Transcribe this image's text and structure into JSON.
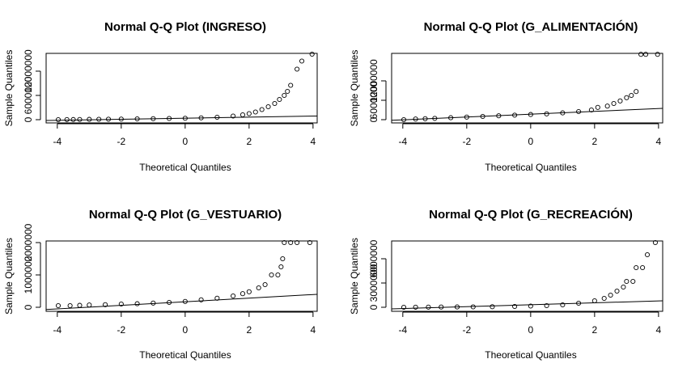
{
  "chart_data": [
    {
      "type": "scatter",
      "title": "Normal Q-Q Plot (INGRESO)",
      "x_label": "Theoretical Quantiles",
      "y_label": "Sample Quantiles",
      "xlim": [
        -4.35,
        4.13
      ],
      "ylim": [
        -800000,
        16400000
      ],
      "xticks": [
        -4,
        -2,
        0,
        2,
        4
      ],
      "yticks": [
        0,
        6000000,
        12000000
      ],
      "x": [
        -3.97,
        -3.7,
        -3.5,
        -3.3,
        -3.0,
        -2.7,
        -2.4,
        -2.0,
        -1.5,
        -1.0,
        -0.5,
        0,
        0.5,
        1.0,
        1.5,
        1.8,
        2.0,
        2.2,
        2.4,
        2.6,
        2.8,
        2.95,
        3.1,
        3.2,
        3.3,
        3.5,
        3.65,
        3.97
      ],
      "values": [
        0,
        20000,
        30000,
        50000,
        80000,
        100000,
        120000,
        150000,
        200000,
        250000,
        300000,
        350000,
        450000,
        600000,
        900000,
        1200000,
        1500000,
        1900000,
        2500000,
        3200000,
        4000000,
        5000000,
        6000000,
        7000000,
        8500000,
        12500000,
        14500000,
        16200000
      ],
      "reference_line": {
        "x": [
          -4.35,
          4.13
        ],
        "values": [
          -200000,
          900000
        ]
      }
    },
    {
      "type": "scatter",
      "title": "Normal Q-Q Plot (G_ALIMENTACIÓN)",
      "x_label": "Theoretical Quantiles",
      "y_label": "Sample Quantiles",
      "xlim": [
        -4.35,
        4.13
      ],
      "ylim": [
        -1000000,
        20500000
      ],
      "xticks": [
        -4,
        -2,
        0,
        2,
        4
      ],
      "yticks": [
        0,
        6000000,
        12000000
      ],
      "x": [
        -3.97,
        -3.6,
        -3.3,
        -3.0,
        -2.5,
        -2.0,
        -1.5,
        -1.0,
        -0.5,
        0,
        0.5,
        1.0,
        1.5,
        1.9,
        2.1,
        2.4,
        2.6,
        2.8,
        3.0,
        3.15,
        3.3,
        3.45,
        3.6,
        3.97
      ],
      "values": [
        0,
        200000,
        300000,
        400000,
        600000,
        800000,
        1000000,
        1200000,
        1400000,
        1600000,
        1800000,
        2100000,
        2500000,
        3000000,
        3800000,
        4200000,
        5000000,
        5800000,
        6800000,
        7500000,
        8700000,
        20200000,
        20200000,
        20200000
      ],
      "reference_line": {
        "x": [
          -4.35,
          4.13
        ],
        "values": [
          -200000,
          3500000
        ]
      }
    },
    {
      "type": "scatter",
      "title": "Normal Q-Q Plot (G_VESTUARIO)",
      "x_label": "Theoretical Quantiles",
      "y_label": "Sample Quantiles",
      "xlim": [
        -4.35,
        4.13
      ],
      "ylim": [
        -125000,
        2050000
      ],
      "xticks": [
        -4,
        -2,
        0,
        2,
        4
      ],
      "yticks": [
        0,
        1000000,
        2000000
      ],
      "x": [
        -3.97,
        -3.6,
        -3.3,
        -3.0,
        -2.5,
        -2.0,
        -1.5,
        -1.0,
        -0.5,
        0,
        0.5,
        1.0,
        1.5,
        1.8,
        2.0,
        2.3,
        2.5,
        2.7,
        2.9,
        3.0,
        3.05,
        3.1,
        3.3,
        3.5,
        3.9
      ],
      "values": [
        50000,
        50000,
        60000,
        70000,
        80000,
        100000,
        110000,
        130000,
        150000,
        180000,
        230000,
        280000,
        350000,
        420000,
        480000,
        600000,
        700000,
        1000000,
        1000000,
        1250000,
        1500000,
        2000000,
        2000000,
        2000000,
        2000000
      ],
      "reference_line": {
        "x": [
          -4.35,
          4.13
        ],
        "values": [
          -70000,
          400000
        ]
      }
    },
    {
      "type": "scatter",
      "title": "Normal Q-Q Plot (G_RECREACIÓN)",
      "x_label": "Theoretical Quantiles",
      "y_label": "Sample Quantiles",
      "xlim": [
        -4.35,
        4.13
      ],
      "ylim": [
        -500000,
        8200000
      ],
      "xticks": [
        -4,
        -2,
        0,
        2,
        4
      ],
      "yticks": [
        0,
        3000000,
        6000000
      ],
      "x": [
        -3.97,
        -3.6,
        -3.2,
        -2.8,
        -2.3,
        -1.8,
        -1.2,
        -0.5,
        0,
        0.5,
        1.0,
        1.5,
        2.0,
        2.3,
        2.5,
        2.7,
        2.9,
        3.0,
        3.2,
        3.3,
        3.5,
        3.65,
        3.9
      ],
      "values": [
        0,
        10000,
        20000,
        30000,
        40000,
        50000,
        70000,
        100000,
        150000,
        200000,
        300000,
        500000,
        800000,
        1100000,
        1500000,
        2000000,
        2500000,
        3200000,
        3200000,
        4900000,
        4900000,
        6500000,
        8000000
      ],
      "reference_line": {
        "x": [
          -4.35,
          4.13
        ],
        "values": [
          -200000,
          800000
        ]
      }
    }
  ]
}
